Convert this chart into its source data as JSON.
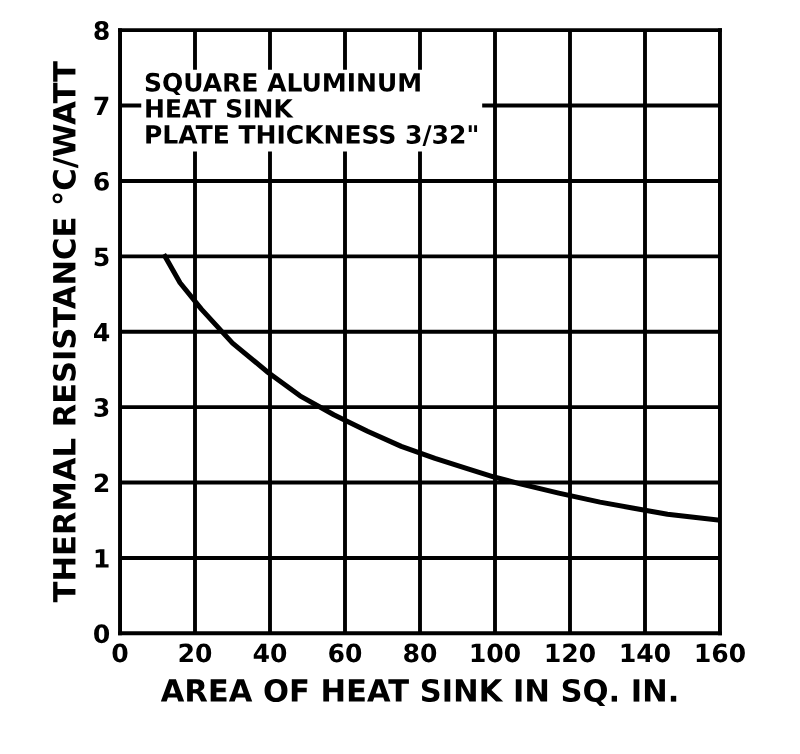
{
  "chart_data": {
    "type": "line",
    "xlabel": "AREA OF HEAT SINK IN SQ. IN.",
    "ylabel": "THERMAL RESISTANCE °C/WATT",
    "annotations": [
      "SQUARE ALUMINUM\nHEAT SINK\nPLATE THICKNESS 3/32\""
    ],
    "series": [
      {
        "color": "#000000",
        "x": [
          12,
          16,
          21.7,
          30,
          39.5,
          48,
          57,
          66,
          75,
          84,
          92.8,
          100,
          107,
          117,
          128,
          137,
          146,
          153,
          160
        ],
        "values": [
          5.0,
          4.65,
          4.3,
          3.85,
          3.46,
          3.15,
          2.9,
          2.68,
          2.48,
          2.32,
          2.18,
          2.07,
          1.98,
          1.86,
          1.74,
          1.66,
          1.58,
          1.54,
          1.5
        ]
      }
    ],
    "xlim": [
      0,
      160
    ],
    "ylim": [
      0,
      8
    ],
    "xticks": [
      0,
      20,
      40,
      60,
      80,
      100,
      120,
      140,
      160
    ],
    "yticks": [
      0,
      1,
      2,
      3,
      4,
      5,
      6,
      7,
      8
    ],
    "grid": true,
    "legend": false,
    "marker": "none",
    "line_style": "solid"
  }
}
